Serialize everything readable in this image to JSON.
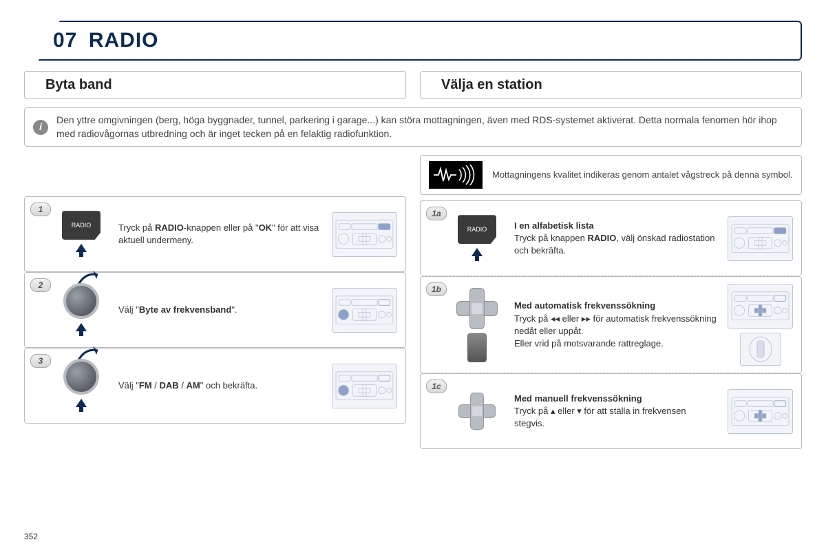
{
  "header": {
    "number": "07",
    "title": "RADIO"
  },
  "subheaders": {
    "left": "Byta band",
    "right": "Välja en station"
  },
  "info_banner": {
    "icon_label": "i",
    "text": "Den yttre omgivningen (berg, höga byggnader, tunnel, parkering i garage...) kan störa mottagningen, även med RDS-systemet aktiverat. Detta normala fenomen hör ihop med radiovågornas utbredning och är inget tecken på en felaktig radiofunktion."
  },
  "signal_row": {
    "text": "Mottagningens kvalitet indikeras genom antalet vågstreck på denna symbol."
  },
  "left_steps": [
    {
      "num": "1",
      "icon": "radio-tile",
      "text_parts": [
        "Tryck på ",
        "RADIO",
        "-knappen eller på \"",
        "OK",
        "\" för att visa aktuell undermeny."
      ],
      "bold_idx": [
        1,
        3
      ]
    },
    {
      "num": "2",
      "icon": "knob",
      "text_parts": [
        "Välj \"",
        "Byte av frekvensband",
        "\"."
      ],
      "bold_idx": [
        1
      ]
    },
    {
      "num": "3",
      "icon": "knob",
      "text_parts": [
        "Välj \"",
        "FM",
        " / ",
        "DAB",
        " / ",
        "AM",
        "\" och bekräfta."
      ],
      "bold_idx": [
        1,
        3,
        5
      ]
    }
  ],
  "right_steps": [
    {
      "num": "1a",
      "icon": "radio-tile",
      "title": "I en alfabetisk lista",
      "text_parts": [
        "Tryck på knappen ",
        "RADIO",
        ", välj önskad radiostation och bekräfta."
      ],
      "bold_idx": [
        1
      ]
    },
    {
      "num": "1b",
      "icon": "dpad",
      "title": "Med automatisk frekvenssökning",
      "text_parts": [
        "Tryck på ◂◂  eller  ▸▸  för automatisk frekvenssökning nedåt eller uppåt.\nEller vrid på motsvarande rattreglage."
      ],
      "bold_idx": [],
      "extra_icon": "wheel"
    },
    {
      "num": "1c",
      "icon": "dpad-mini",
      "title": "Med manuell frekvenssökning",
      "text_parts": [
        "Tryck på  ▴  eller  ▾  för att ställa in frekvensen stegvis."
      ],
      "bold_idx": []
    }
  ],
  "radio_tile_label": "RADIO",
  "page_number": "352",
  "colors": {
    "header_border": "#0b2a56",
    "card_border": "#bbbbbb",
    "thumb_border": "#bcc7dc",
    "arrow": "#0b2a56"
  }
}
